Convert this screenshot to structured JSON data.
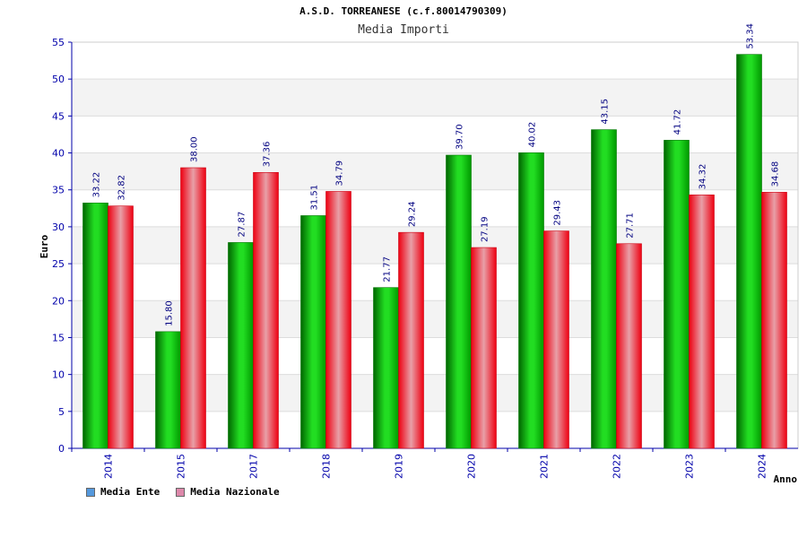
{
  "header": {
    "title": "A.S.D. TORREANESE (c.f.80014790309)",
    "subtitle": "Media Importi"
  },
  "chart_data": {
    "type": "bar",
    "title": "A.S.D. TORREANESE (c.f.80014790309)",
    "subtitle": "Media Importi",
    "xlabel": "Anno",
    "ylabel": "Euro",
    "ylim": [
      0,
      55
    ],
    "yticks": [
      0,
      5,
      10,
      15,
      20,
      25,
      30,
      35,
      40,
      45,
      50,
      55
    ],
    "categories": [
      "2014",
      "2015",
      "2017",
      "2018",
      "2019",
      "2020",
      "2021",
      "2022",
      "2023",
      "2024"
    ],
    "series": [
      {
        "name": "Media Ente",
        "color": "#00aa00",
        "values": [
          33.22,
          15.8,
          27.87,
          31.51,
          21.77,
          39.7,
          40.02,
          43.15,
          41.72,
          53.34
        ],
        "labels": [
          "33.22",
          "15.80",
          "27.87",
          "31.51",
          "21.77",
          "39.70",
          "40.02",
          "43.15",
          "41.72",
          "53.34"
        ]
      },
      {
        "name": "Media Nazionale",
        "color": "#ee1122",
        "values": [
          32.82,
          38.0,
          37.36,
          34.79,
          29.24,
          27.19,
          29.43,
          27.71,
          34.32,
          34.68
        ],
        "labels": [
          "32.82",
          "38.00",
          "37.36",
          "34.79",
          "29.24",
          "27.19",
          "29.43",
          "27.71",
          "34.32",
          "34.68"
        ]
      }
    ],
    "grid": true,
    "legend_position": "bottom-left",
    "legend_colors": [
      "#5599dd",
      "#dd88aa"
    ]
  }
}
